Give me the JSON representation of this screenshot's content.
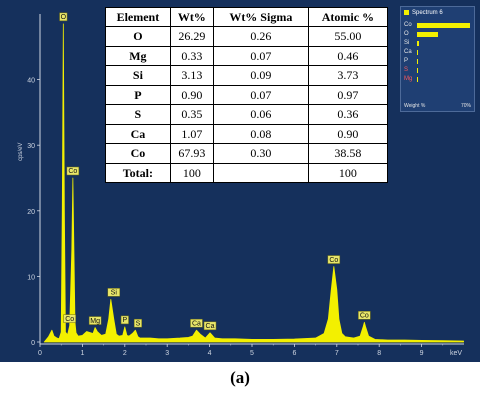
{
  "chart_data": {
    "type": "line",
    "title": "",
    "xlabel": "keV",
    "ylabel": "cps/eV",
    "xlim": [
      0,
      10
    ],
    "ylim": [
      0,
      50
    ],
    "x_ticks": [
      "0",
      "1",
      "2",
      "3",
      "4",
      "5",
      "6",
      "7",
      "8",
      "9"
    ],
    "y_ticks": [
      "0",
      "10",
      "20",
      "30",
      "40"
    ],
    "grid": false,
    "series": [
      {
        "color": "#f3f000",
        "x": [
          0.1,
          0.2,
          0.28,
          0.33,
          0.4,
          0.45,
          0.5,
          0.525,
          0.55,
          0.575,
          0.6,
          0.65,
          0.7,
          0.75,
          0.775,
          0.8,
          0.825,
          0.85,
          0.9,
          1.0,
          1.1,
          1.25,
          1.3,
          1.35,
          1.45,
          1.55,
          1.62,
          1.67,
          1.74,
          1.8,
          1.86,
          1.95,
          2.0,
          2.05,
          2.1,
          2.18,
          2.25,
          2.31,
          2.36,
          2.45,
          2.6,
          2.8,
          3.0,
          3.3,
          3.5,
          3.6,
          3.69,
          3.78,
          3.9,
          4.01,
          4.12,
          4.3,
          4.6,
          5.0,
          5.5,
          6.0,
          6.5,
          6.7,
          6.8,
          6.87,
          6.93,
          7.0,
          7.05,
          7.12,
          7.2,
          7.4,
          7.55,
          7.62,
          7.65,
          7.68,
          7.75,
          7.9,
          8.2,
          8.6,
          9.0,
          9.5,
          9.99
        ],
        "y": [
          0,
          0.8,
          1.8,
          0.9,
          0.6,
          0.5,
          1.5,
          20,
          48.5,
          20,
          1.5,
          1.1,
          2.5,
          14,
          25,
          14,
          3,
          1.4,
          0.9,
          1.0,
          1.6,
          1.3,
          2.2,
          1.6,
          1.0,
          1.2,
          3.5,
          6.5,
          3.5,
          1.2,
          0.9,
          1.0,
          2.3,
          1.0,
          0.9,
          1.3,
          1.8,
          0.8,
          0.6,
          0.6,
          0.6,
          0.5,
          0.5,
          0.6,
          0.7,
          0.9,
          1.8,
          1.2,
          0.6,
          1.4,
          0.6,
          0.5,
          0.5,
          0.4,
          0.4,
          0.45,
          0.6,
          1.3,
          3.5,
          8,
          11.5,
          8,
          3.5,
          1.3,
          0.8,
          0.6,
          0.9,
          2.3,
          3.0,
          2.3,
          0.9,
          0.4,
          0.3,
          0.3,
          0.25,
          0.2,
          0.15
        ]
      }
    ],
    "peak_labels": [
      {
        "text": "O",
        "x": 0.55,
        "y": 48.5
      },
      {
        "text": "Co",
        "x": 0.775,
        "y": 25
      },
      {
        "text": "Si",
        "x": 1.74,
        "y": 6.5
      },
      {
        "text": "P",
        "x": 2.0,
        "y": 2.3
      },
      {
        "text": "S",
        "x": 2.31,
        "y": 1.8
      },
      {
        "text": "Mg",
        "x": 1.3,
        "y": 2.2
      },
      {
        "text": "Co",
        "x": 0.7,
        "y": 2.5
      },
      {
        "text": "Ca",
        "x": 3.69,
        "y": 1.8
      },
      {
        "text": "Ca",
        "x": 4.01,
        "y": 1.4
      },
      {
        "text": "Co",
        "x": 6.93,
        "y": 11.5
      },
      {
        "text": "Co",
        "x": 7.65,
        "y": 3.0
      }
    ]
  },
  "table": {
    "headers": [
      "Element",
      "Wt%",
      "Wt% Sigma",
      "Atomic %"
    ],
    "rows": [
      [
        "O",
        "26.29",
        "0.26",
        "55.00"
      ],
      [
        "Mg",
        "0.33",
        "0.07",
        "0.46"
      ],
      [
        "Si",
        "3.13",
        "0.09",
        "3.73"
      ],
      [
        "P",
        "0.90",
        "0.07",
        "0.97"
      ],
      [
        "S",
        "0.35",
        "0.06",
        "0.36"
      ],
      [
        "Ca",
        "1.07",
        "0.08",
        "0.90"
      ],
      [
        "Co",
        "67.93",
        "0.30",
        "38.58"
      ],
      [
        "Total:",
        "100",
        "",
        "100"
      ]
    ]
  },
  "legend": {
    "title": "Spectrum 6",
    "axis_label": "Weight %",
    "axis_max": "70%",
    "axis_max_value": 70,
    "items": [
      {
        "element": "Co",
        "wt": 67.93,
        "highlight": false
      },
      {
        "element": "O",
        "wt": 26.29,
        "highlight": false
      },
      {
        "element": "Si",
        "wt": 3.13,
        "highlight": false
      },
      {
        "element": "Ca",
        "wt": 1.07,
        "highlight": false
      },
      {
        "element": "P",
        "wt": 0.9,
        "highlight": false
      },
      {
        "element": "S",
        "wt": 0.35,
        "highlight": true
      },
      {
        "element": "Mg",
        "wt": 0.33,
        "highlight": true
      }
    ]
  },
  "caption": "(a)",
  "colors": {
    "background": "#15305c",
    "spectrum": "#f3f000",
    "axis": "#cfd6e2",
    "highlight": "#ff5a5a"
  }
}
